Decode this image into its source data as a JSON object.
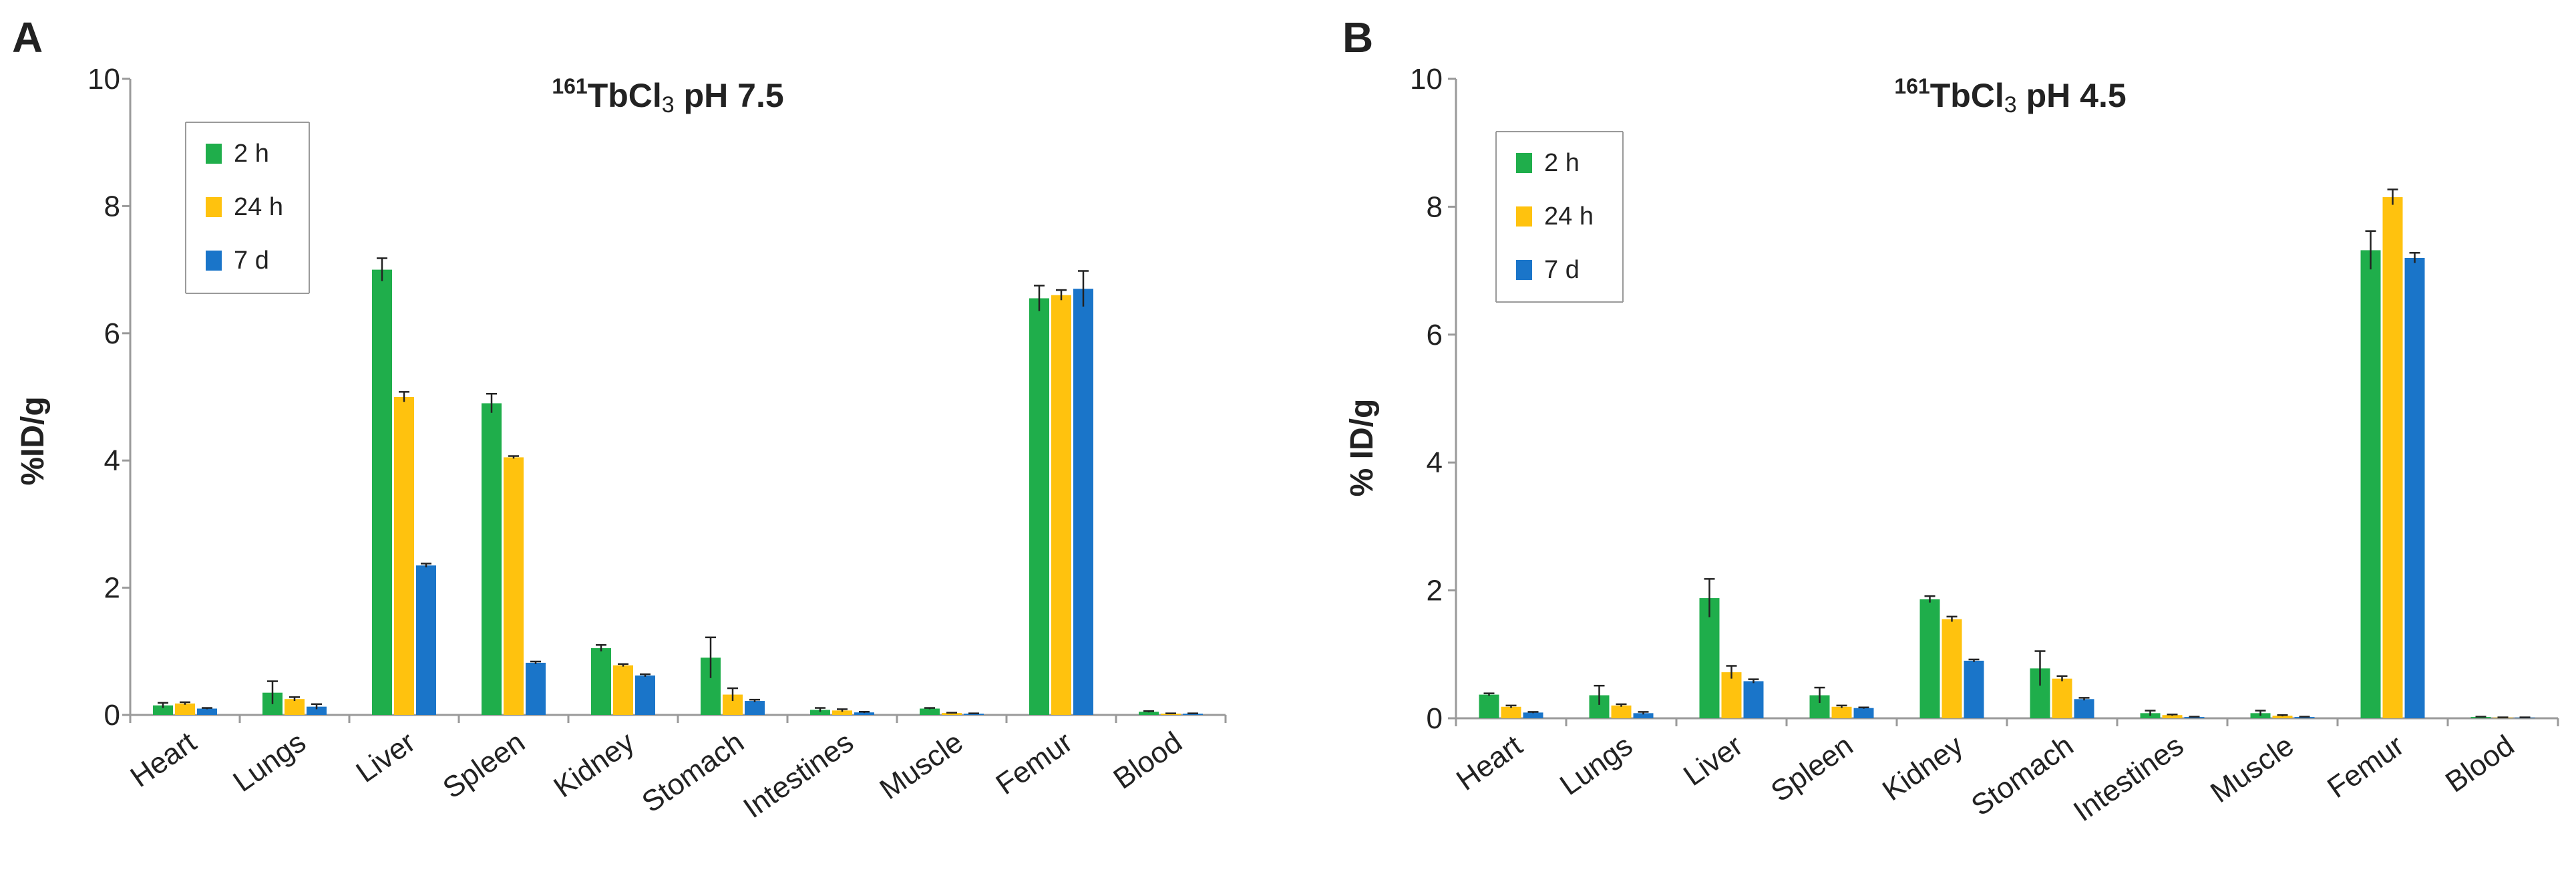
{
  "colors": {
    "2h": "#1fae4b",
    "24h": "#ffc20e",
    "7d": "#1a75c9",
    "axis": "#9a9a9a",
    "error": "#222222"
  },
  "chart_data": [
    {
      "panel_label": "A",
      "type": "bar",
      "title_sup": "161",
      "title_main": "TbCl",
      "title_sub": "3",
      "title_rest": " pH 7.5",
      "ylabel": "%ID/g",
      "ylim": [
        0,
        10
      ],
      "yticks": [
        "0",
        "2",
        "4",
        "6",
        "8",
        "10"
      ],
      "categories": [
        "Heart",
        "Lungs",
        "Liver",
        "Spleen",
        "Kidney",
        "Stomach",
        "Intestines",
        "Muscle",
        "Femur",
        "Blood"
      ],
      "series": [
        {
          "name": "2 h",
          "values": [
            0.15,
            0.35,
            7.0,
            4.9,
            1.05,
            0.9,
            0.08,
            0.1,
            6.55,
            0.05
          ],
          "errors": [
            0.04,
            0.18,
            0.18,
            0.15,
            0.05,
            0.32,
            0.03,
            0.01,
            0.2,
            0.01
          ]
        },
        {
          "name": "24 h",
          "values": [
            0.18,
            0.25,
            5.0,
            4.05,
            0.78,
            0.32,
            0.07,
            0.03,
            6.6,
            0.02
          ],
          "errors": [
            0.02,
            0.03,
            0.08,
            0.02,
            0.02,
            0.1,
            0.02,
            0.005,
            0.08,
            0.005
          ]
        },
        {
          "name": "7 d",
          "values": [
            0.1,
            0.13,
            2.35,
            0.82,
            0.62,
            0.22,
            0.04,
            0.02,
            6.7,
            0.02
          ],
          "errors": [
            0.01,
            0.04,
            0.03,
            0.02,
            0.02,
            0.02,
            0.01,
            0.005,
            0.28,
            0.005
          ]
        }
      ],
      "legend": [
        "2 h",
        "24 h",
        "7 d"
      ]
    },
    {
      "panel_label": "B",
      "type": "bar",
      "title_sup": "161",
      "title_main": "TbCl",
      "title_sub": "3",
      "title_rest": " pH 4.5",
      "ylabel": "% ID/g",
      "ylim": [
        0,
        10
      ],
      "yticks": [
        "0",
        "2",
        "4",
        "6",
        "8",
        "10"
      ],
      "categories": [
        "Heart",
        "Lungs",
        "Liver",
        "Spleen",
        "Kidney",
        "Stomach",
        "Intestines",
        "Muscle",
        "Femur",
        "Blood"
      ],
      "series": [
        {
          "name": "2 h",
          "values": [
            0.37,
            0.36,
            1.88,
            0.36,
            1.86,
            0.78,
            0.08,
            0.08,
            7.32,
            0.02
          ],
          "errors": [
            0.02,
            0.15,
            0.3,
            0.12,
            0.05,
            0.27,
            0.04,
            0.04,
            0.3,
            0.005
          ]
        },
        {
          "name": "24 h",
          "values": [
            0.18,
            0.2,
            0.72,
            0.18,
            1.55,
            0.62,
            0.05,
            0.04,
            8.15,
            0.01
          ],
          "errors": [
            0.02,
            0.02,
            0.1,
            0.02,
            0.04,
            0.04,
            0.01,
            0.01,
            0.12,
            0.005
          ]
        },
        {
          "name": "7 d",
          "values": [
            0.09,
            0.08,
            0.58,
            0.16,
            0.9,
            0.3,
            0.02,
            0.02,
            7.2,
            0.01
          ],
          "errors": [
            0.01,
            0.02,
            0.03,
            0.01,
            0.02,
            0.02,
            0.005,
            0.005,
            0.08,
            0.005
          ]
        }
      ],
      "legend": [
        "2 h",
        "24 h",
        "7 d"
      ]
    }
  ]
}
